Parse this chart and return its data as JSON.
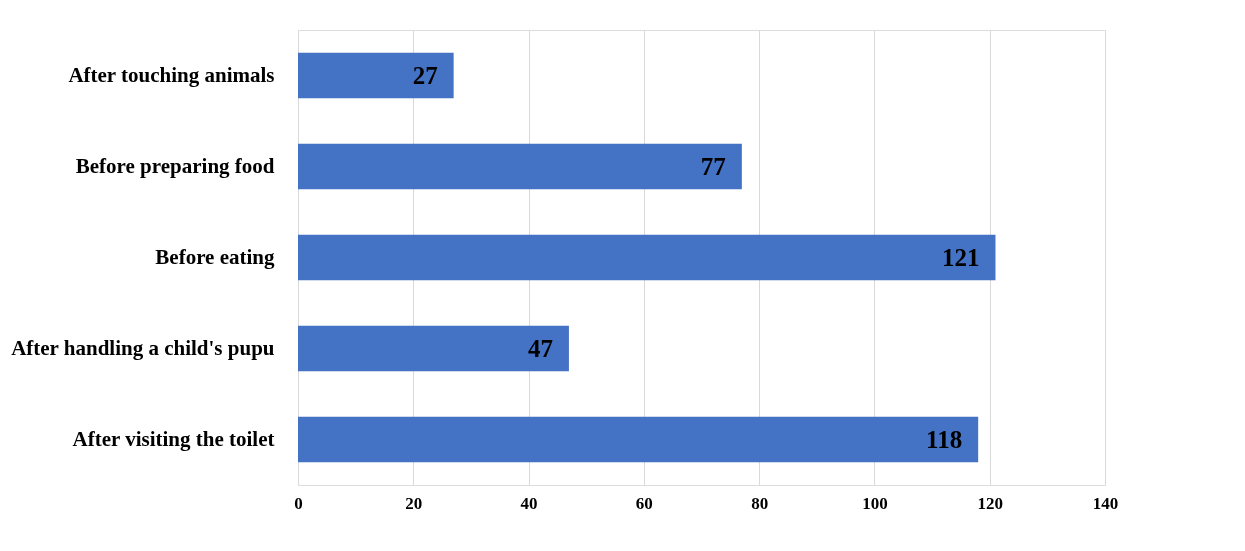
{
  "chart_data": {
    "type": "bar",
    "orientation": "horizontal",
    "categories": [
      "After touching animals",
      "Before preparing food",
      "Before eating",
      "After handling a child's pupu",
      "After visiting the toilet"
    ],
    "values": [
      27,
      77,
      121,
      47,
      118
    ],
    "color": "#4472c4",
    "xlim": [
      0,
      140
    ],
    "xticks": [
      0,
      20,
      40,
      60,
      80,
      100,
      120,
      140
    ],
    "grid": "x",
    "data_labels": true
  }
}
